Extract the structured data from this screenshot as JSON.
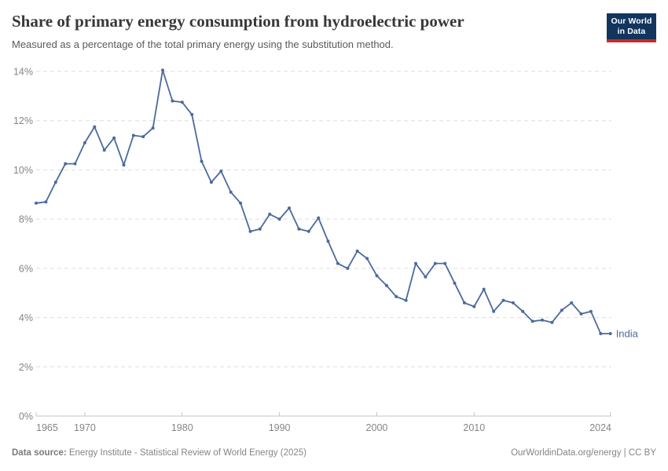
{
  "header": {
    "title": "Share of primary energy consumption from hydroelectric power",
    "subtitle": "Measured as a percentage of the total primary energy using the substitution method.",
    "logo": {
      "line1": "Our World",
      "line2": "in Data"
    }
  },
  "chart_data": {
    "type": "line",
    "title": "Share of primary energy consumption from hydroelectric power",
    "xlabel": "",
    "ylabel": "",
    "xlim": [
      1965,
      2024
    ],
    "ylim": [
      0,
      14
    ],
    "xticks": [
      1965,
      1970,
      1980,
      1990,
      2000,
      2010,
      2024
    ],
    "yticks": [
      0,
      2,
      4,
      6,
      8,
      10,
      12,
      14
    ],
    "ytick_suffix": "%",
    "grid": "horizontal-dashed",
    "legend_position": "end-of-line-label",
    "series": [
      {
        "name": "India",
        "x": [
          1965,
          1966,
          1967,
          1968,
          1969,
          1970,
          1971,
          1972,
          1973,
          1974,
          1975,
          1976,
          1977,
          1978,
          1979,
          1980,
          1981,
          1982,
          1983,
          1984,
          1985,
          1986,
          1987,
          1988,
          1989,
          1990,
          1991,
          1992,
          1993,
          1994,
          1995,
          1996,
          1997,
          1998,
          1999,
          2000,
          2001,
          2002,
          2003,
          2004,
          2005,
          2006,
          2007,
          2008,
          2009,
          2010,
          2011,
          2012,
          2013,
          2014,
          2015,
          2016,
          2017,
          2018,
          2019,
          2020,
          2021,
          2022,
          2023,
          2024
        ],
        "values": [
          8.65,
          8.7,
          9.5,
          10.25,
          10.25,
          11.1,
          11.75,
          10.8,
          11.3,
          10.2,
          11.4,
          11.35,
          11.7,
          14.05,
          12.8,
          12.75,
          12.25,
          10.35,
          9.5,
          9.95,
          9.1,
          8.65,
          7.5,
          7.6,
          8.2,
          8.0,
          8.45,
          7.6,
          7.5,
          8.05,
          7.1,
          6.2,
          6.0,
          6.7,
          6.4,
          5.7,
          5.3,
          4.85,
          4.7,
          6.2,
          5.65,
          6.2,
          6.2,
          5.4,
          4.6,
          4.45,
          5.15,
          4.25,
          4.7,
          4.6,
          4.25,
          3.85,
          3.9,
          3.8,
          4.3,
          4.6,
          4.15,
          4.25,
          3.35,
          3.35
        ]
      }
    ]
  },
  "footer": {
    "source_label": "Data source:",
    "source_text": " Energy Institute - Statistical Review of World Energy (2025)",
    "rights": "OurWorldinData.org/energy | CC BY"
  },
  "colors": {
    "line": "#4c6a9c",
    "grid": "#dedede",
    "axis": "#c4c4c4",
    "tick_text": "#858585",
    "logo_bg": "#12355e",
    "logo_red": "#cc2a24"
  }
}
